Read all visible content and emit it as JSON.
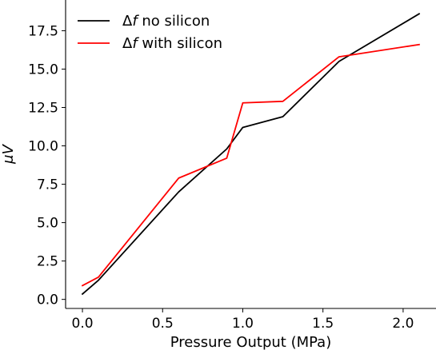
{
  "chart_data": {
    "type": "line",
    "title": "",
    "xlabel": "Pressure Output (MPa)",
    "ylabel": "μV",
    "xlim": [
      -0.105,
      2.205
    ],
    "ylim": [
      -0.59,
      19.5
    ],
    "xticks": [
      0.0,
      0.5,
      1.0,
      1.5,
      2.0
    ],
    "xtick_labels": [
      "0.0",
      "0.5",
      "1.0",
      "1.5",
      "2.0"
    ],
    "yticks": [
      0.0,
      2.5,
      5.0,
      7.5,
      10.0,
      12.5,
      15.0,
      17.5
    ],
    "ytick_labels": [
      "0.0",
      "2.5",
      "5.0",
      "7.5",
      "10.0",
      "12.5",
      "15.0",
      "17.5"
    ],
    "grid": false,
    "spines": "left-bottom",
    "legend": {
      "position": "top-left",
      "entries": [
        {
          "prefix": "Δ",
          "symbol": "f",
          "text": " no silicon",
          "color": "#000000"
        },
        {
          "prefix": "Δ",
          "symbol": "f",
          "text": " with silicon",
          "color": "#ff0000"
        }
      ]
    },
    "series": [
      {
        "name": "Δf no silicon",
        "color": "#000000",
        "x": [
          0.0,
          0.1,
          0.6,
          0.9,
          1.0,
          1.25,
          1.6,
          2.1
        ],
        "y": [
          0.35,
          1.25,
          7.0,
          9.8,
          11.2,
          11.9,
          15.5,
          18.6
        ]
      },
      {
        "name": "Δf with silicon",
        "color": "#ff0000",
        "x": [
          0.0,
          0.1,
          0.6,
          0.9,
          1.0,
          1.25,
          1.6,
          2.1
        ],
        "y": [
          0.9,
          1.45,
          7.9,
          9.2,
          12.8,
          12.9,
          15.8,
          16.6
        ]
      }
    ]
  }
}
